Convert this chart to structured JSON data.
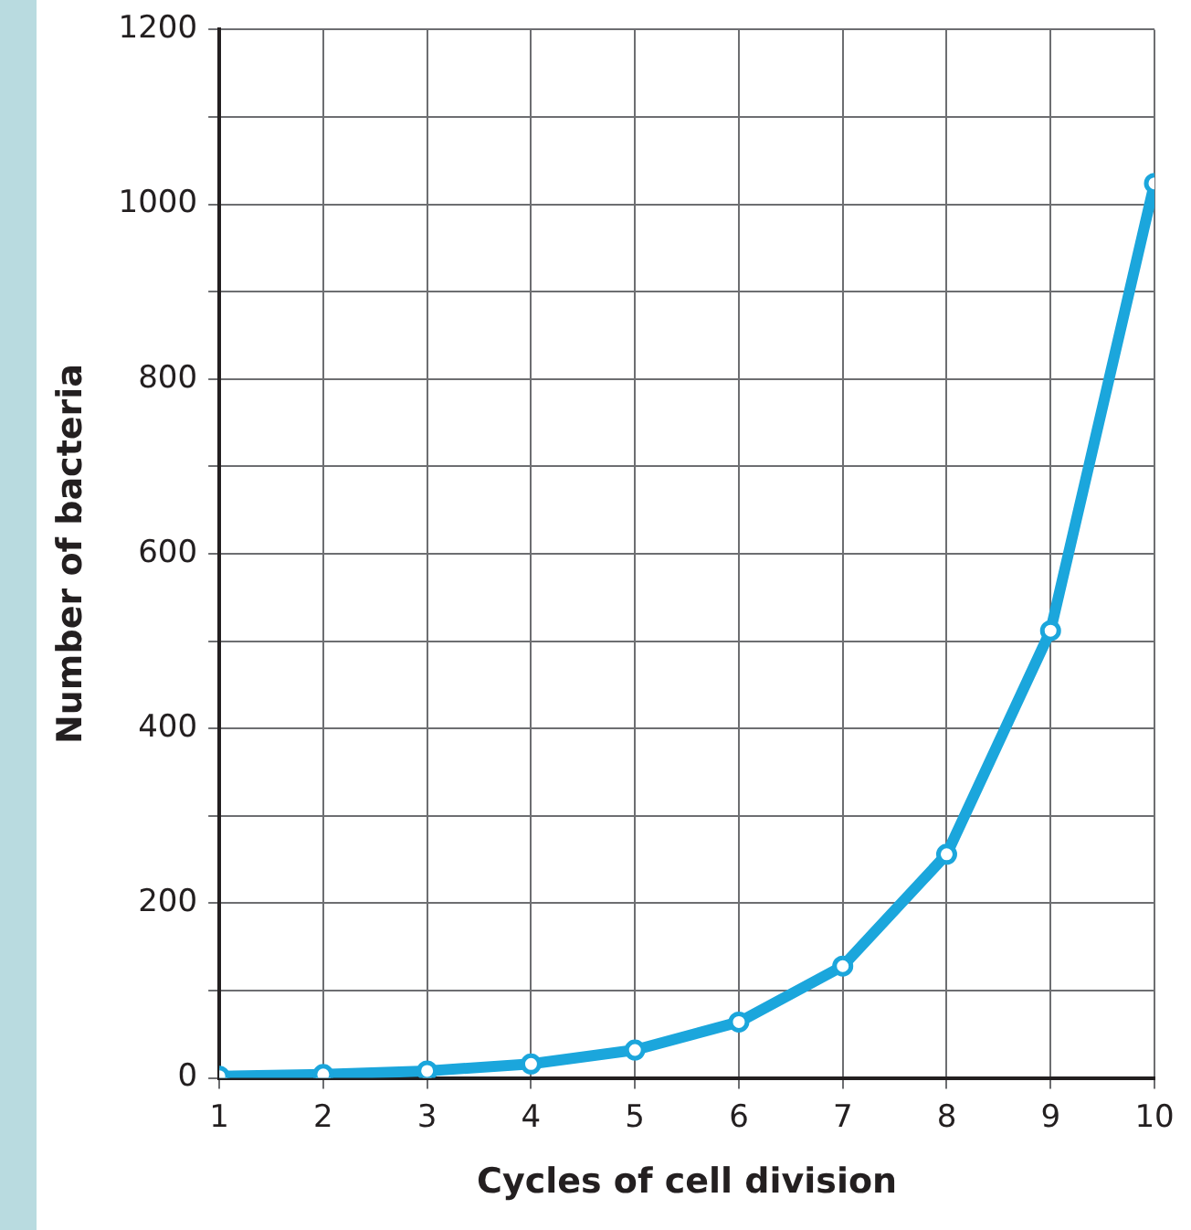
{
  "chart_data": {
    "type": "line",
    "xlabel": "Cycles of cell division",
    "ylabel": "Number of bacteria",
    "x": [
      1,
      2,
      3,
      4,
      5,
      6,
      7,
      8,
      9,
      10
    ],
    "series": [
      {
        "color": "#1ba6dc",
        "values": [
          2,
          4,
          8,
          16,
          32,
          64,
          128,
          256,
          512,
          1024
        ]
      }
    ],
    "xlim": [
      1,
      10
    ],
    "xticks": [
      1,
      2,
      3,
      4,
      5,
      6,
      7,
      8,
      9,
      10
    ],
    "ylim": [
      0,
      1200
    ],
    "yticks": [
      0,
      {
        "value": 100,
        "label": null
      },
      200,
      {
        "value": 300,
        "label": null
      },
      400,
      {
        "value": 500,
        "label": null
      },
      600,
      {
        "value": 700,
        "label": null
      },
      800,
      {
        "value": 900,
        "label": null
      },
      1000,
      {
        "value": 1100,
        "label": null
      },
      1200
    ],
    "grid": true,
    "marker": "circle",
    "line_style": "solid",
    "legend": false
  }
}
